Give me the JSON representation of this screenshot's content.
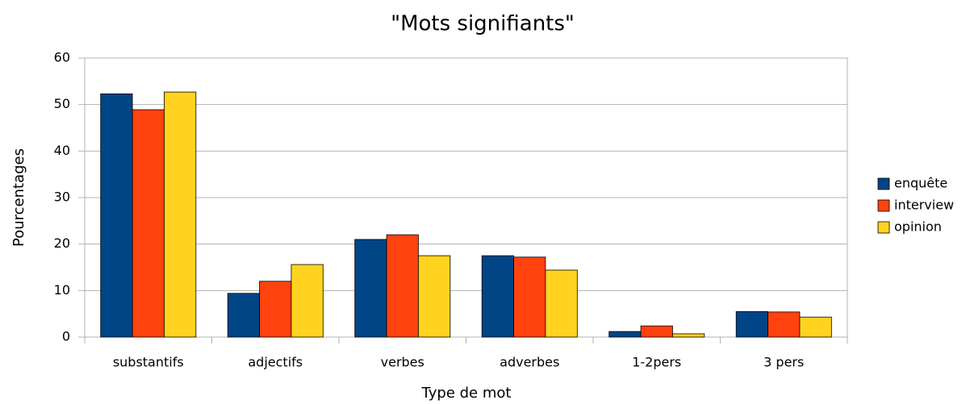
{
  "chart_data": {
    "type": "bar",
    "title": "\"Mots signifiants\"",
    "x_label": "Type de mot",
    "y_label": "Pourcentages",
    "categories": [
      "substantifs",
      "adjectifs",
      "verbes",
      "adverbes",
      "1-2pers",
      "3 pers"
    ],
    "series": [
      {
        "name": "enquête",
        "color": "#004586",
        "values": [
          52.3,
          9.4,
          21.0,
          17.5,
          1.2,
          5.5
        ]
      },
      {
        "name": "interview",
        "color": "#ff420e",
        "values": [
          48.9,
          12.0,
          22.0,
          17.2,
          2.4,
          5.4
        ]
      },
      {
        "name": "opinion",
        "color": "#ffd320",
        "values": [
          52.7,
          15.6,
          17.5,
          14.4,
          0.7,
          4.3
        ]
      }
    ],
    "ylim": [
      0,
      60
    ],
    "yticks": [
      0,
      10,
      20,
      30,
      40,
      50,
      60
    ],
    "grid": true,
    "legend": "right"
  }
}
